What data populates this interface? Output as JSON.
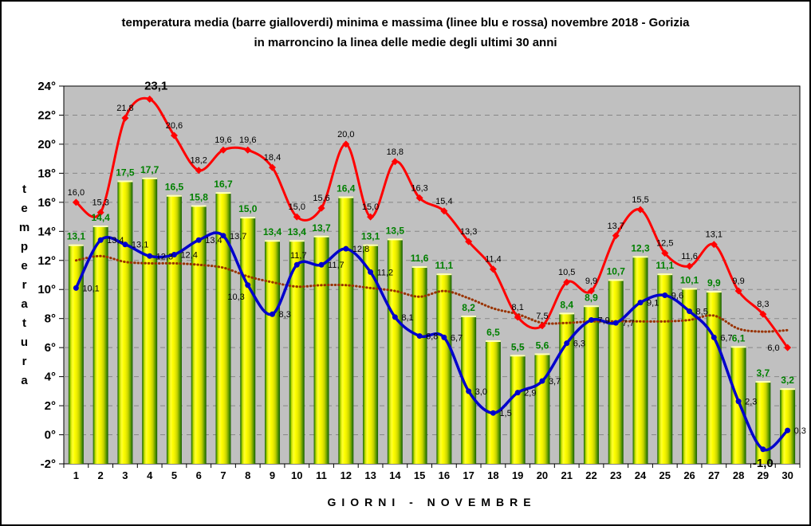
{
  "title": {
    "line1": "temperatura media (barre gialloverdi) minima e massima (linee blu e rossa) novembre 2018 - Gorizia",
    "line2": "in marroncino la linea delle medie degli ultimi 30 anni"
  },
  "axes": {
    "ylabel": "temperatura",
    "xlabel": "GIORNI - NOVEMBRE",
    "y_ticks": [
      "24°",
      "22°",
      "20°",
      "18°",
      "16°",
      "14°",
      "12°",
      "10°",
      "8°",
      "6°",
      "4°",
      "2°",
      "0°",
      "-2°"
    ],
    "x_ticks": [
      "1",
      "2",
      "3",
      "4",
      "5",
      "6",
      "7",
      "8",
      "9",
      "10",
      "11",
      "12",
      "13",
      "14",
      "15",
      "16",
      "17",
      "18",
      "19",
      "20",
      "21",
      "22",
      "23",
      "24",
      "25",
      "26",
      "27",
      "28",
      "29",
      "30"
    ]
  },
  "colors": {
    "plot_background": "#c0c0c0",
    "gridline": "#878787",
    "bar_yellow": "#ffff00",
    "bar_green_edge": "#1d5c00",
    "bar_label_green": "#008000",
    "max_line_red": "#ff0000",
    "min_line_blue": "#0000cc",
    "avg_line_brown": "#993300"
  },
  "chart_data": {
    "type": "bar",
    "title": "temperatura media (barre gialloverdi) minima e massima (linee blu e rossa) novembre 2018 - Gorizia — in marroncino la linea delle medie degli ultimi 30 anni",
    "xlabel": "GIORNI - NOVEMBRE",
    "ylabel": "temperatura",
    "ylim": [
      -2,
      24
    ],
    "ytick_step": 2,
    "grid": true,
    "legend_position": "none",
    "categories": [
      1,
      2,
      3,
      4,
      5,
      6,
      7,
      8,
      9,
      10,
      11,
      12,
      13,
      14,
      15,
      16,
      17,
      18,
      19,
      20,
      21,
      22,
      23,
      24,
      25,
      26,
      27,
      28,
      29,
      30
    ],
    "series": [
      {
        "name": "temperatura media (barre gialloverdi)",
        "type": "bar",
        "values": [
          13.1,
          14.4,
          17.5,
          17.7,
          16.5,
          15.8,
          16.7,
          15.0,
          13.4,
          13.4,
          13.7,
          16.4,
          13.1,
          13.5,
          11.6,
          11.1,
          8.2,
          6.5,
          5.5,
          5.6,
          8.4,
          8.9,
          10.7,
          12.3,
          11.1,
          10.1,
          9.9,
          6.1,
          3.7,
          3.2
        ],
        "labels": [
          "13,1",
          "14,4",
          "17,5",
          "17,7",
          "16,5",
          "15,8",
          "16,7",
          "15,0",
          "13,4",
          "13,4",
          "13,7",
          "16,4",
          "13,1",
          "13,5",
          "11,6",
          "11,1",
          "8,2",
          "6,5",
          "5,5",
          "5,6",
          "8,4",
          "8,9",
          "10,7",
          "12,3",
          "11,1",
          "10,1",
          "9,9",
          "6,1",
          "3,7",
          "3,2"
        ]
      },
      {
        "name": "massima (linea rossa)",
        "type": "line",
        "values": [
          16.0,
          15.3,
          21.8,
          23.1,
          20.6,
          18.2,
          19.6,
          19.6,
          18.4,
          15.0,
          15.6,
          20.0,
          15.0,
          18.8,
          16.3,
          15.4,
          13.3,
          11.4,
          8.1,
          7.5,
          10.5,
          9.9,
          13.7,
          15.5,
          12.5,
          11.6,
          13.1,
          9.9,
          8.3,
          6.0
        ],
        "labels": [
          "16,0",
          "15,3",
          "21,8",
          "23,1",
          "20,6",
          "18,2",
          "19,6",
          "19,6",
          "18,4",
          "15,0",
          "15,6",
          "20,0",
          "15,0",
          "18,8",
          "16,3",
          "15,4",
          "13,3",
          "11,4",
          "8,1",
          "7,5",
          "10,5",
          "9,9",
          "13,7",
          "15,5",
          "12,5",
          "11,6",
          "13,1",
          "9,9",
          "8,3",
          "6,0"
        ]
      },
      {
        "name": "minima (linea blu)",
        "type": "line",
        "values": [
          10.1,
          13.4,
          13.1,
          12.3,
          12.4,
          13.4,
          13.7,
          10.3,
          8.3,
          11.7,
          11.7,
          12.8,
          11.2,
          8.1,
          6.8,
          6.7,
          3.0,
          1.5,
          2.9,
          3.7,
          6.3,
          7.9,
          7.7,
          9.1,
          9.6,
          8.5,
          6.7,
          2.3,
          -1.0,
          0.3
        ],
        "labels": [
          "10,1",
          "13,4",
          "13,1",
          "12,3",
          "12,4",
          "13,4",
          "13,7",
          "10,3",
          "8,3",
          "11,7",
          "11,7",
          "12,8",
          "11,2",
          "8,1",
          "6,8",
          "6,7",
          "3,0",
          "1,5",
          "2,9",
          "3,7",
          "6,3",
          "7,9",
          "7,7",
          "9,1",
          "9,6",
          "8,5",
          "6,7",
          "2,3",
          "-1,0",
          "0,3"
        ]
      },
      {
        "name": "medie degli ultimi 30 anni (marroncino)",
        "type": "line",
        "values": [
          12.0,
          12.3,
          11.9,
          11.8,
          11.8,
          11.7,
          11.5,
          10.9,
          10.5,
          10.2,
          10.3,
          10.3,
          10.1,
          9.9,
          9.5,
          9.9,
          9.4,
          8.7,
          8.3,
          7.7,
          7.7,
          7.8,
          7.8,
          7.8,
          7.8,
          7.9,
          8.2,
          7.3,
          7.1,
          7.2
        ],
        "labels": []
      }
    ]
  }
}
